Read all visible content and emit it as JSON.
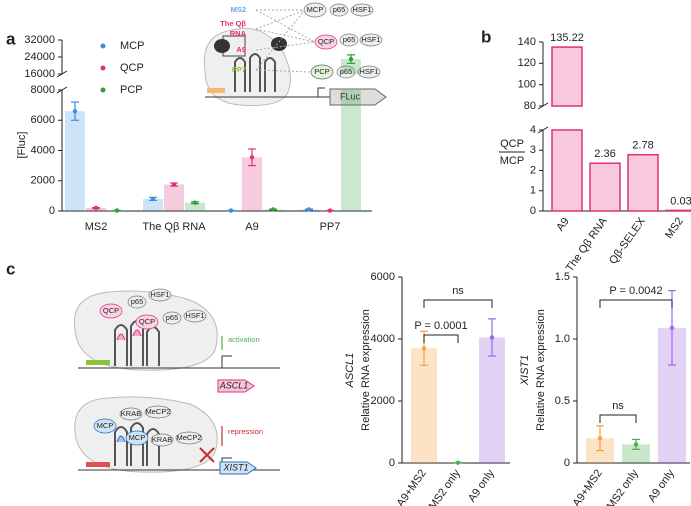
{
  "panel_labels": [
    "a",
    "b",
    "c"
  ],
  "diagram_a": {
    "aptamers": [
      "MS2",
      "The Qβ",
      "RNA",
      "A9",
      "PP7"
    ],
    "proteins": [
      "MCP",
      "p65",
      "HSF1",
      "QCP",
      "p65",
      "HSF1",
      "PCP",
      "p65",
      "HSF1"
    ],
    "reporter": "FLuc"
  },
  "diagram_c": {
    "activation": {
      "proteins": [
        "QCP",
        "p65",
        "HSF1",
        "QCP",
        "p65",
        "HSF1"
      ],
      "arrow": "activation",
      "gene": "ASCL1"
    },
    "repression": {
      "proteins": [
        "MCP",
        "KRAB",
        "MeCP2",
        "MCP",
        "KRAB",
        "MeCP2"
      ],
      "arrow": "repression",
      "gene": "XIST1"
    }
  },
  "chart_data": [
    {
      "type": "bar",
      "ylabel": "[Fluc]",
      "categories": [
        "MS2",
        "The Qβ RNA",
        "A9",
        "PP7"
      ],
      "series": [
        {
          "name": "MCP",
          "color": "#3a8fe0",
          "values": [
            6600,
            800,
            30,
            100
          ],
          "errors": [
            600,
            100,
            10,
            30
          ]
        },
        {
          "name": "QCP",
          "color": "#e0307a",
          "values": [
            200,
            1750,
            3550,
            30
          ],
          "errors": [
            30,
            100,
            550,
            10
          ]
        },
        {
          "name": "PCP",
          "color": "#2e9e3e",
          "values": [
            30,
            550,
            100,
            23000
          ],
          "errors": [
            10,
            60,
            20,
            2000
          ]
        }
      ],
      "ylim": [
        0,
        32000
      ],
      "y_segments": [
        [
          0,
          8000
        ],
        [
          16000,
          32000
        ]
      ],
      "yticks": [
        0,
        2000,
        4000,
        6000,
        8000,
        16000,
        24000,
        32000
      ],
      "legend": "top-left"
    },
    {
      "type": "bar",
      "ylabel": [
        "QCP",
        "MCP"
      ],
      "categories": [
        "A9",
        "The Qβ RNA",
        "Qβ-SELEX",
        "MS2"
      ],
      "values": [
        135.22,
        2.36,
        2.78,
        0.03
      ],
      "color": "#f8c8dd",
      "edge_color": "#e0307a",
      "ylim": [
        0,
        140
      ],
      "y_segments": [
        [
          0,
          4
        ],
        [
          80,
          140
        ]
      ],
      "yticks": [
        0,
        1,
        2,
        3,
        4,
        80,
        100,
        120,
        140
      ],
      "data_labels": true
    },
    {
      "type": "bar",
      "ylabel": [
        "ASCL1",
        "Relative RNA expression"
      ],
      "categories": [
        "A9+MS2",
        "MS2 only",
        "A9 only"
      ],
      "values": [
        3700,
        10,
        4050
      ],
      "errors": [
        550,
        5,
        600
      ],
      "colors": [
        "#f5a340",
        "#4caf50",
        "#9c6ae2"
      ],
      "ylim": [
        0,
        6000
      ],
      "yticks": [
        0,
        2000,
        4000,
        6000
      ],
      "annotations": [
        "ns",
        "P = 0.0001"
      ]
    },
    {
      "type": "bar",
      "ylabel": [
        "XIST1",
        "Relative RNA expression"
      ],
      "categories": [
        "A9+MS2",
        "MS2 only",
        "A9 only"
      ],
      "values": [
        0.2,
        0.15,
        1.09
      ],
      "errors": [
        0.1,
        0.04,
        0.3
      ],
      "colors": [
        "#f5a340",
        "#4caf50",
        "#9c6ae2"
      ],
      "ylim": [
        0,
        1.5
      ],
      "yticks": [
        0,
        0.5,
        {
          "value": 1,
          "label": "1.0"
        },
        1.5
      ],
      "annotations": [
        "P = 0.0042",
        "ns"
      ]
    }
  ]
}
